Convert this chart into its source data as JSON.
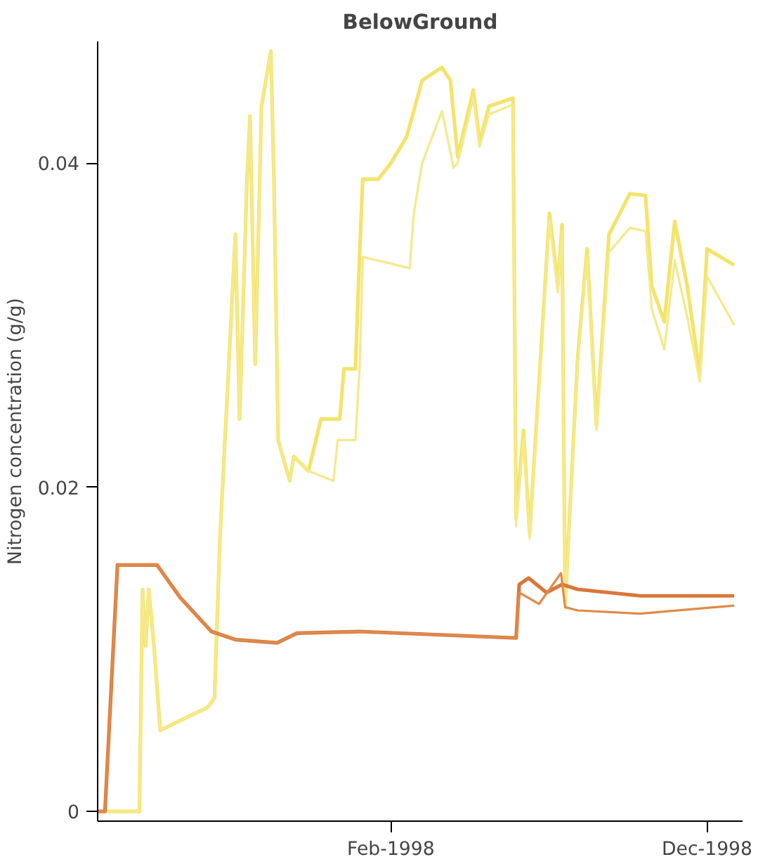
{
  "chart_data": {
    "type": "line",
    "title": "BelowGround",
    "ylabel": "Nitrogen concentration (g/g)",
    "xlim": [
      "1997-04-26",
      "1999-01-04"
    ],
    "ylim": [
      -0.0006,
      0.0475
    ],
    "xticks": [
      {
        "value": "1998-02-01",
        "label": "Feb-1998"
      },
      {
        "value": "1998-12-01",
        "label": "Dec-1998"
      }
    ],
    "yticks": [
      0,
      0.02,
      0.04
    ],
    "grid": false,
    "marker": "none",
    "line_style": "solid",
    "series": [
      {
        "color": "#f3e46a",
        "x": [
          "1997-05-03",
          "1997-06-05",
          "1997-06-08",
          "1997-06-11",
          "1997-06-14",
          "1997-06-19",
          "1997-06-25",
          "1997-07-17",
          "1997-08-09",
          "1997-08-16",
          "1997-08-21",
          "1997-08-31",
          "1997-09-05",
          "1997-09-09",
          "1997-09-16",
          "1997-09-19",
          "1997-09-24",
          "1997-09-30",
          "1997-10-09",
          "1997-10-12",
          "1997-10-16",
          "1997-10-27",
          "1997-10-31",
          "1997-11-14",
          "1997-11-26",
          "1997-12-14",
          "1997-12-18",
          "1997-12-29",
          "1998-01-02",
          "1998-01-05",
          "1998-01-20",
          "1998-02-01",
          "1998-02-16",
          "1998-03-03",
          "1998-03-22",
          "1998-03-30",
          "1998-04-06",
          "1998-04-21",
          "1998-04-27",
          "1998-05-06",
          "1998-05-29",
          "1998-06-01",
          "1998-06-08",
          "1998-06-14",
          "1998-07-03",
          "1998-07-11",
          "1998-07-15",
          "1998-07-18",
          "1998-07-30",
          "1998-08-08",
          "1998-08-17",
          "1998-08-29",
          "1998-09-18",
          "1998-10-03",
          "1998-10-09",
          "1998-10-21",
          "1998-10-31",
          "1998-11-12",
          "1998-11-24",
          "1998-12-01",
          "1998-12-27"
        ],
        "values": [
          0,
          0,
          0.0137,
          0.0102,
          0.0137,
          0.0102,
          0.005,
          0.0057,
          0.0064,
          0.007,
          0.0166,
          0.0292,
          0.0356,
          0.0242,
          0.0388,
          0.0429,
          0.0276,
          0.0435,
          0.0469,
          0.0388,
          0.0229,
          0.0204,
          0.0219,
          0.021,
          0.0242,
          0.0242,
          0.0273,
          0.0273,
          0.0343,
          0.039,
          0.039,
          0.04,
          0.0416,
          0.0451,
          0.0459,
          0.0451,
          0.0404,
          0.0445,
          0.0413,
          0.0435,
          0.044,
          0.0181,
          0.0235,
          0.0171,
          0.0369,
          0.0324,
          0.0362,
          0.0128,
          0.028,
          0.0347,
          0.0238,
          0.0356,
          0.0381,
          0.038,
          0.0324,
          0.0302,
          0.0364,
          0.0324,
          0.027,
          0.0347,
          0.0337
        ]
      },
      {
        "color": "#f5e98a",
        "x": [
          "1997-05-03",
          "1997-06-05",
          "1997-06-08",
          "1997-06-11",
          "1997-06-14",
          "1997-06-19",
          "1997-06-25",
          "1997-07-17",
          "1997-08-09",
          "1997-08-16",
          "1997-08-21",
          "1997-08-31",
          "1997-09-05",
          "1997-09-09",
          "1997-09-16",
          "1997-09-19",
          "1997-09-24",
          "1997-09-30",
          "1997-10-09",
          "1997-10-12",
          "1997-10-16",
          "1997-10-27",
          "1997-10-31",
          "1997-11-14",
          "1997-12-08",
          "1997-12-12",
          "1997-12-29",
          "1998-01-02",
          "1998-01-05",
          "1998-02-01",
          "1998-02-19",
          "1998-02-23",
          "1998-03-03",
          "1998-03-22",
          "1998-04-02",
          "1998-04-06",
          "1998-04-21",
          "1998-04-27",
          "1998-05-06",
          "1998-05-29",
          "1998-06-01",
          "1998-06-08",
          "1998-06-14",
          "1998-07-03",
          "1998-07-11",
          "1998-07-15",
          "1998-07-18",
          "1998-07-30",
          "1998-08-08",
          "1998-08-17",
          "1998-08-29",
          "1998-09-18",
          "1998-10-03",
          "1998-10-09",
          "1998-10-21",
          "1998-10-31",
          "1998-11-12",
          "1998-11-24",
          "1998-12-01",
          "1998-12-27"
        ],
        "values": [
          0,
          0,
          0.0137,
          0.0102,
          0.0137,
          0.0102,
          0.005,
          0.0057,
          0.0064,
          0.007,
          0.0166,
          0.0292,
          0.0356,
          0.0242,
          0.0388,
          0.0429,
          0.0276,
          0.0435,
          0.0469,
          0.0388,
          0.0229,
          0.0204,
          0.0219,
          0.021,
          0.0204,
          0.0229,
          0.0229,
          0.0273,
          0.0342,
          0.0338,
          0.0335,
          0.0369,
          0.04,
          0.0432,
          0.0397,
          0.04,
          0.044,
          0.041,
          0.043,
          0.0436,
          0.0176,
          0.023,
          0.0168,
          0.0365,
          0.032,
          0.0358,
          0.0125,
          0.0277,
          0.0343,
          0.0235,
          0.0345,
          0.036,
          0.0358,
          0.031,
          0.0285,
          0.034,
          0.0305,
          0.0265,
          0.033,
          0.03
        ]
      },
      {
        "color": "#d9773a",
        "x": [
          "1997-04-26",
          "1997-05-03",
          "1997-05-15",
          "1997-06-22",
          "1997-07-14",
          "1997-08-13",
          "1997-09-05",
          "1997-10-15",
          "1997-11-03",
          "1998-01-02",
          "1998-06-01",
          "1998-06-04",
          "1998-06-13",
          "1998-06-30",
          "1998-07-15",
          "1998-07-30",
          "1998-09-28",
          "1998-12-27"
        ],
        "values": [
          0,
          0,
          0.0152,
          0.0152,
          0.0132,
          0.0111,
          0.0106,
          0.0104,
          0.011,
          0.0111,
          0.0107,
          0.014,
          0.0144,
          0.0135,
          0.014,
          0.0137,
          0.0133,
          0.0133
        ]
      },
      {
        "color": "#e08a4a",
        "x": [
          "1997-04-26",
          "1997-05-03",
          "1997-05-15",
          "1997-06-22",
          "1997-07-14",
          "1997-08-13",
          "1997-09-05",
          "1997-10-15",
          "1997-11-03",
          "1998-01-02",
          "1998-06-01",
          "1998-06-04",
          "1998-06-23",
          "1998-07-14",
          "1998-07-18",
          "1998-07-30",
          "1998-09-28",
          "1998-12-27"
        ],
        "values": [
          0,
          0,
          0.0152,
          0.0152,
          0.0132,
          0.0111,
          0.0106,
          0.0104,
          0.011,
          0.0111,
          0.0107,
          0.0135,
          0.0128,
          0.0147,
          0.0126,
          0.0124,
          0.0122,
          0.0127
        ]
      }
    ]
  }
}
